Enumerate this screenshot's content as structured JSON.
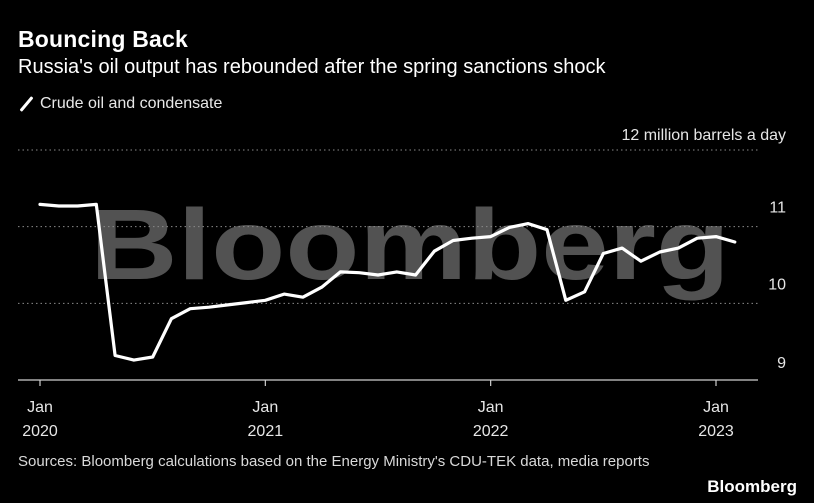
{
  "title": "Bouncing Back",
  "subtitle": "Russia's oil output has rebounded after the spring sanctions shock",
  "legend": {
    "label": "Crude oil and condensate"
  },
  "footer": {
    "source": "Sources: Bloomberg calculations based on the Energy Ministry's CDU-TEK data, media reports",
    "brand": "Bloomberg"
  },
  "watermark": "Bloomberg",
  "chart_data": {
    "type": "line",
    "ylabel": "12 million barrels a day",
    "ylim": [
      9,
      12
    ],
    "yticks": [
      {
        "value": 9,
        "label": "9"
      },
      {
        "value": 10,
        "label": "10"
      },
      {
        "value": 11,
        "label": "11"
      },
      {
        "value": 12,
        "label": "12"
      }
    ],
    "xticks": [
      {
        "date": "2020-01",
        "month": "Jan",
        "year": "2020"
      },
      {
        "date": "2021-01",
        "month": "Jan",
        "year": "2021"
      },
      {
        "date": "2022-01",
        "month": "Jan",
        "year": "2022"
      },
      {
        "date": "2023-01",
        "month": "Jan",
        "year": "2023"
      }
    ],
    "grid": true,
    "series": [
      {
        "name": "Crude oil and condensate",
        "color": "#ffffff",
        "x": [
          "2020-01",
          "2020-02",
          "2020-03",
          "2020-04",
          "2020-05",
          "2020-06",
          "2020-07",
          "2020-08",
          "2020-09",
          "2020-10",
          "2020-11",
          "2020-12",
          "2021-01",
          "2021-02",
          "2021-03",
          "2021-04",
          "2021-05",
          "2021-06",
          "2021-07",
          "2021-08",
          "2021-09",
          "2021-10",
          "2021-11",
          "2021-12",
          "2022-01",
          "2022-02",
          "2022-03",
          "2022-04",
          "2022-05",
          "2022-06",
          "2022-07",
          "2022-08",
          "2022-09",
          "2022-10",
          "2022-11",
          "2022-12",
          "2023-01",
          "2023-02"
        ],
        "values": [
          11.29,
          11.27,
          11.27,
          11.29,
          9.32,
          9.26,
          9.3,
          9.8,
          9.93,
          9.95,
          9.98,
          10.01,
          10.04,
          10.12,
          10.08,
          10.21,
          10.41,
          10.4,
          10.37,
          10.41,
          10.37,
          10.68,
          10.82,
          10.85,
          10.87,
          10.99,
          11.04,
          10.96,
          10.04,
          10.15,
          10.65,
          10.72,
          10.55,
          10.67,
          10.72,
          10.85,
          10.87,
          10.8
        ]
      }
    ]
  }
}
